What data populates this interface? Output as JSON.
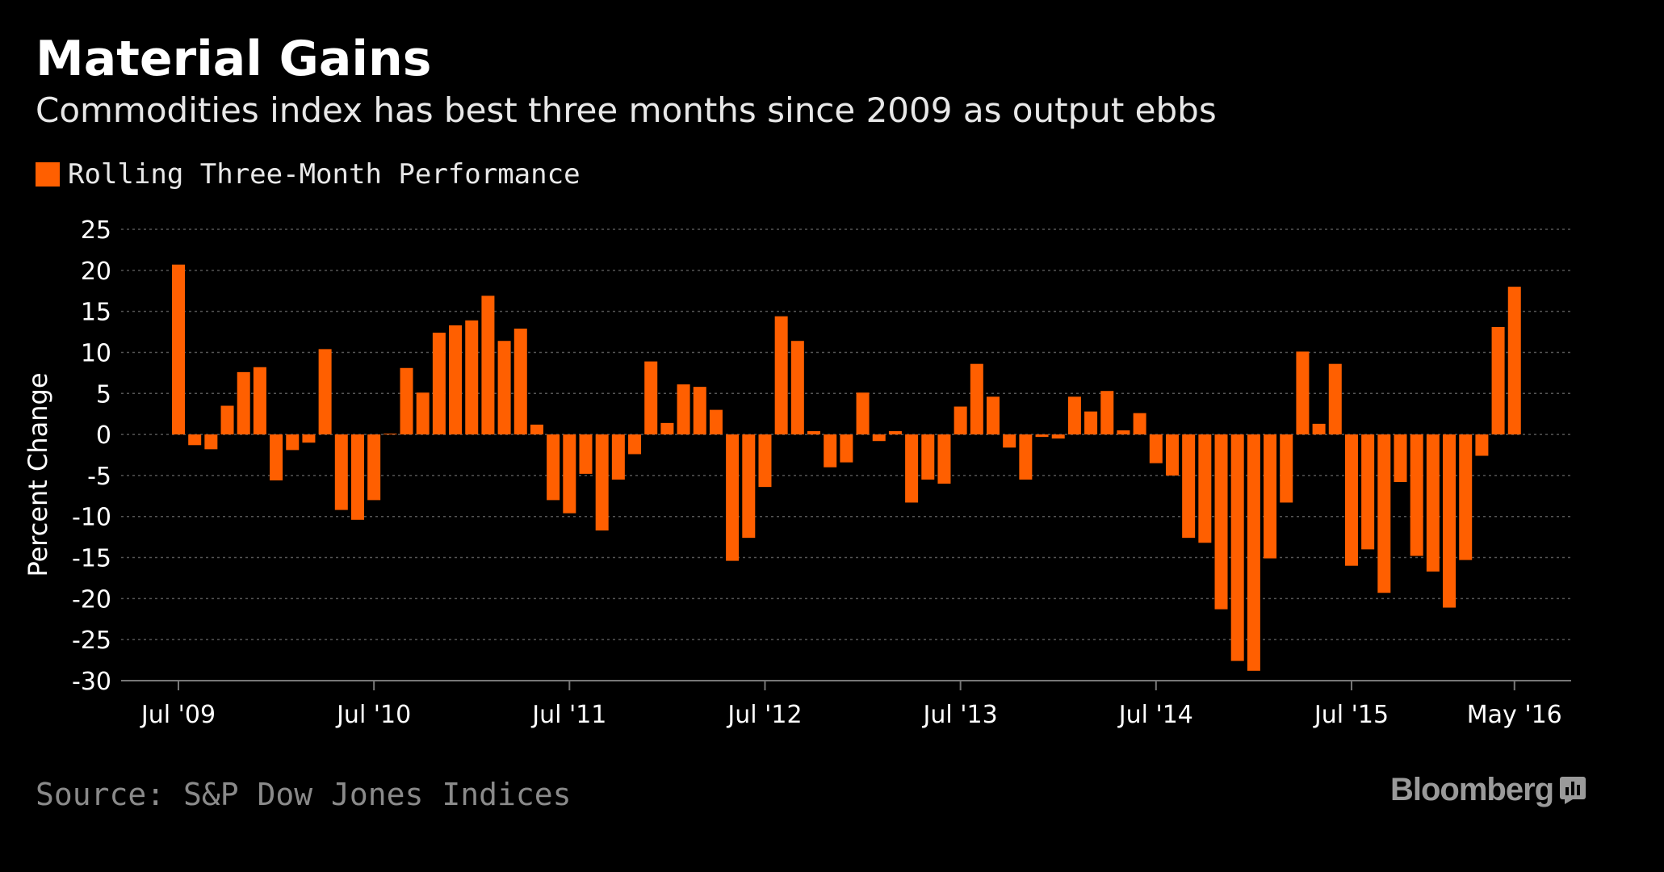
{
  "title": "Material Gains",
  "subtitle": "Commodities index has best three months since 2009 as output ebbs",
  "legend_label": "Rolling Three-Month Performance",
  "source": "Source: S&P Dow Jones Indices",
  "brand": "Bloomberg",
  "colors": {
    "bar": "#ff5f00",
    "background": "#000000",
    "grid": "#555555",
    "axis": "#777777"
  },
  "chart_data": {
    "type": "bar",
    "ylabel": "Percent Change",
    "ylim": [
      -30,
      25
    ],
    "yticks": [
      25,
      20,
      15,
      10,
      5,
      0,
      -5,
      -10,
      -15,
      -20,
      -25,
      -30
    ],
    "grid": "horizontal-dotted",
    "legend": "top-left",
    "start_month": "Jul '09",
    "end_month": "May '16",
    "x_ticks": [
      "Jul '09",
      "Jul '10",
      "Jul '11",
      "Jul '12",
      "Jul '13",
      "Jul '14",
      "Jul '15",
      "May '16"
    ],
    "x_tick_index": [
      0,
      12,
      24,
      36,
      48,
      60,
      72,
      82
    ],
    "series": [
      {
        "name": "Rolling Three-Month Performance",
        "values": [
          20.7,
          -1.3,
          -1.8,
          3.5,
          7.6,
          8.2,
          -5.6,
          -1.9,
          -1.0,
          10.4,
          -9.2,
          -10.4,
          -8.0,
          0.1,
          8.1,
          5.1,
          12.4,
          13.3,
          13.9,
          16.9,
          11.4,
          12.9,
          1.2,
          -8.0,
          -9.6,
          -4.8,
          -11.7,
          -5.5,
          -2.4,
          8.9,
          1.4,
          6.1,
          5.8,
          3.0,
          -15.4,
          -12.6,
          -6.4,
          14.4,
          11.4,
          0.4,
          -4.0,
          -3.4,
          5.1,
          -0.8,
          0.4,
          -8.3,
          -5.5,
          -6.0,
          3.4,
          8.6,
          4.6,
          -1.6,
          -5.5,
          -0.3,
          -0.5,
          4.6,
          2.8,
          5.3,
          0.5,
          2.6,
          -3.5,
          -5.0,
          -12.6,
          -13.2,
          -21.3,
          -27.6,
          -28.8,
          -15.1,
          -8.3,
          10.1,
          1.3,
          8.6,
          -16.0,
          -14.0,
          -19.3,
          -5.8,
          -14.8,
          -16.7,
          -21.1,
          -15.3,
          -2.6,
          13.1,
          18.0
        ]
      }
    ]
  }
}
